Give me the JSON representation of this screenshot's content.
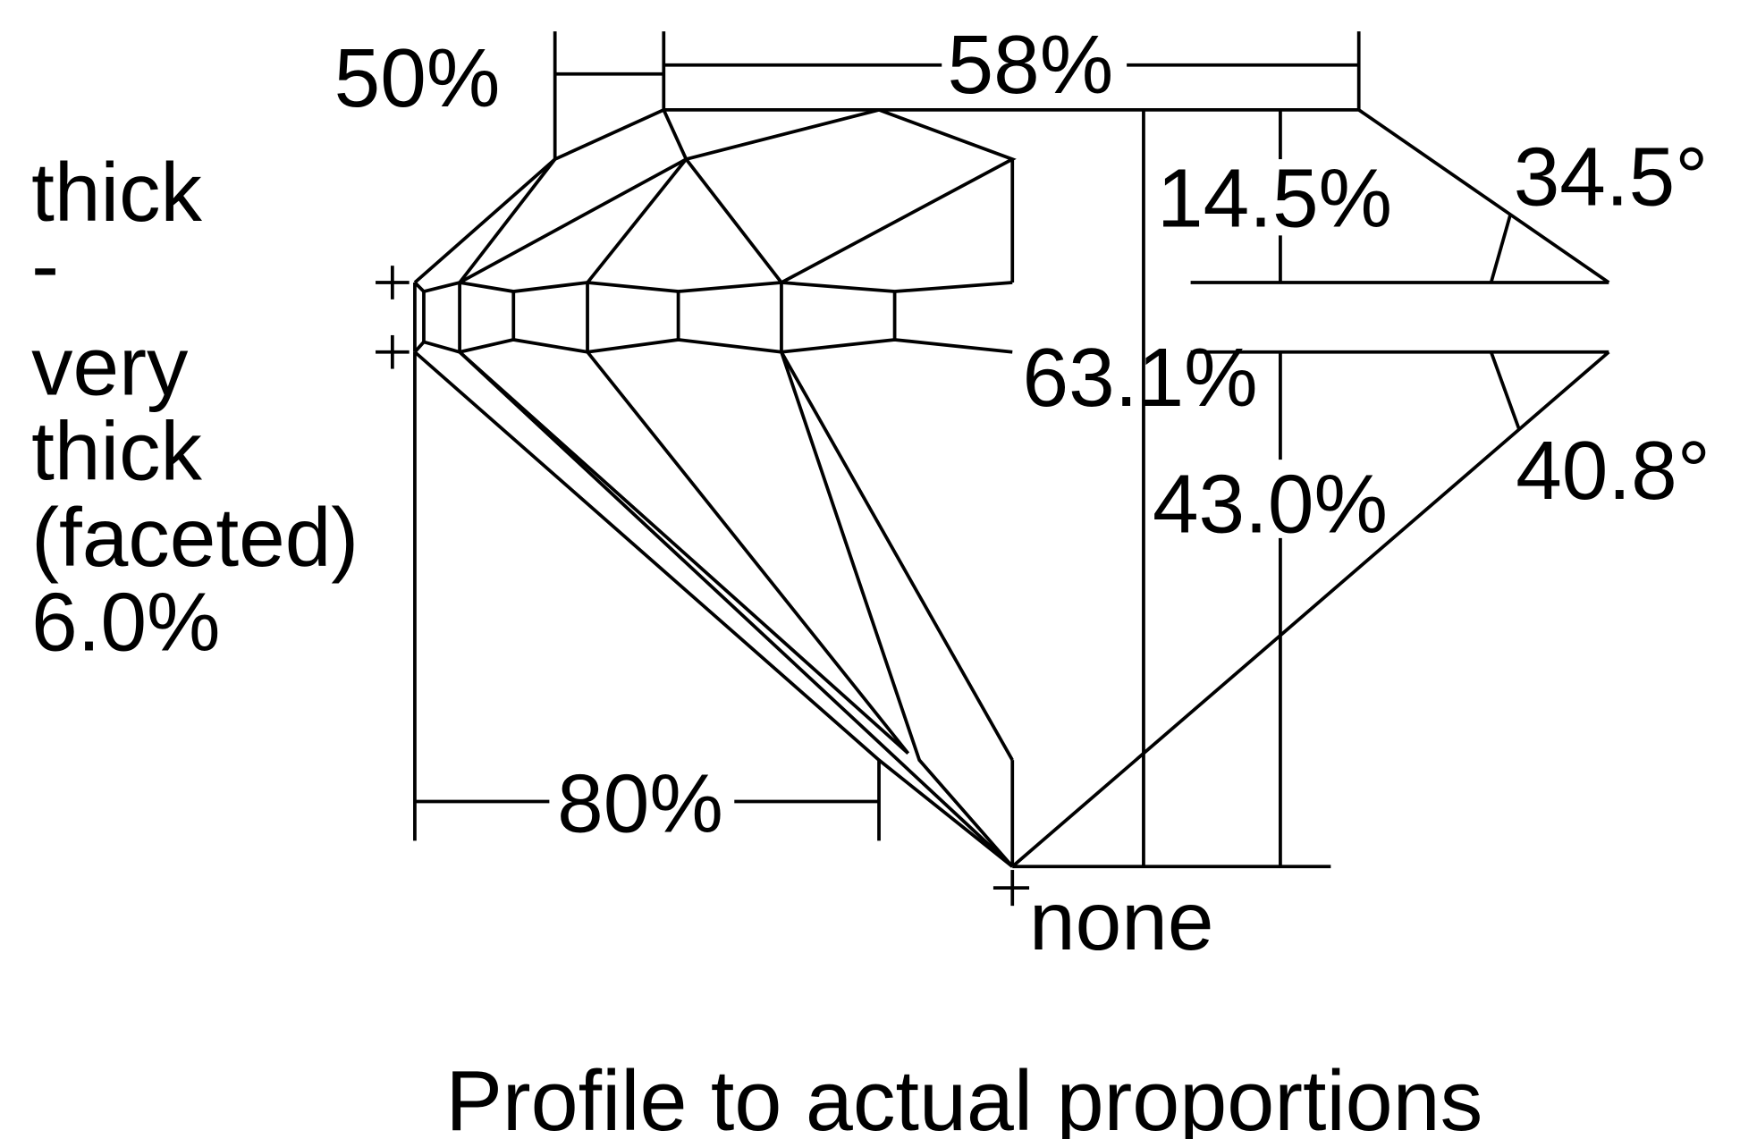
{
  "diagram": {
    "title": "Profile to actual proportions",
    "girdle_label": [
      "thick",
      "-",
      "very",
      "thick",
      "(faceted)",
      "6.0%"
    ],
    "star_length": "50%",
    "table": "58%",
    "crown_height": "14.5%",
    "crown_angle": "34.5°",
    "total_depth": "63.1%",
    "pavilion_angle": "40.8°",
    "pavilion_depth": "43.0%",
    "lower_half_length": "80%",
    "culet": "none",
    "line_color": "#000000",
    "background": "#ffffff"
  }
}
